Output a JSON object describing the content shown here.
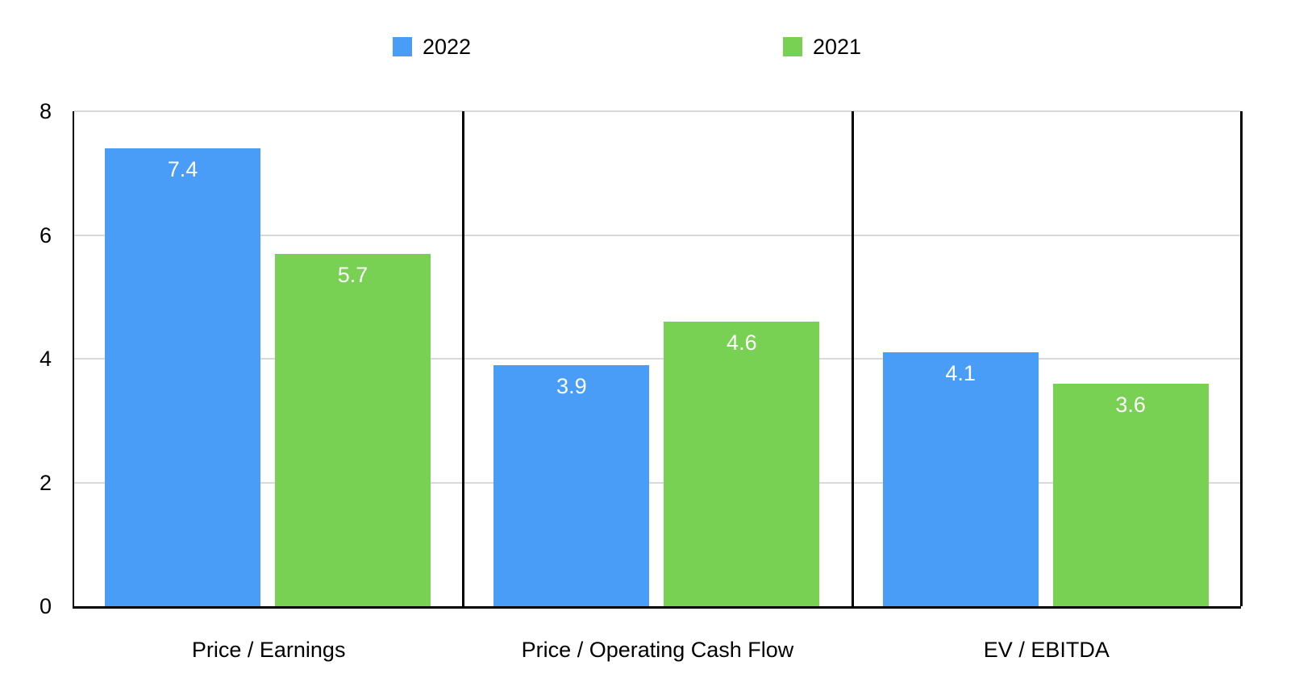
{
  "chart_data": {
    "type": "bar",
    "title": "",
    "xlabel": "",
    "ylabel": "",
    "categories": [
      "Price / Earnings",
      "Price / Operating Cash Flow",
      "EV / EBITDA"
    ],
    "series": [
      {
        "name": "2022",
        "color": "#4a9df6",
        "values": [
          7.4,
          3.9,
          4.1
        ]
      },
      {
        "name": "2021",
        "color": "#78d152",
        "values": [
          5.7,
          4.6,
          3.6
        ]
      }
    ],
    "ylim": [
      0,
      8
    ],
    "yticks": [
      0,
      2,
      4,
      6,
      8
    ],
    "grid": true,
    "legend_position": "top",
    "bar_labels_shown": true
  },
  "legend": {
    "items": [
      {
        "label": "2022",
        "color": "#4a9df6"
      },
      {
        "label": "2021",
        "color": "#78d152"
      }
    ]
  },
  "colors": {
    "series_2022": "#4a9df6",
    "series_2021": "#78d152",
    "axis": "#000000",
    "gridline": "#d9d9d9",
    "bar_value_text": "#ffffff",
    "label_text": "#000000",
    "background": "#ffffff"
  }
}
